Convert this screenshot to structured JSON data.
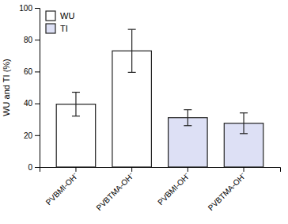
{
  "chart_data": {
    "type": "bar",
    "ylabel": "WU and TI (%)",
    "categories": [
      "PVBMI-OH⁻",
      "PVBTMA-OH⁻",
      "PVBMI-OH⁻",
      "PVBTMA-OH⁻"
    ],
    "series": [
      {
        "name": "WU",
        "color": "white",
        "values": [
          39.5,
          73.0,
          null,
          null
        ],
        "errors": [
          7.5,
          13.5,
          null,
          null
        ]
      },
      {
        "name": "TI",
        "color": "#dde0f5",
        "values": [
          null,
          null,
          31.0,
          27.5
        ],
        "errors": [
          null,
          null,
          5.0,
          6.5
        ]
      }
    ],
    "ylim": [
      0,
      100
    ],
    "yticks": [
      0,
      20,
      40,
      60,
      80,
      100
    ],
    "grid": false,
    "legend": "upper left"
  }
}
